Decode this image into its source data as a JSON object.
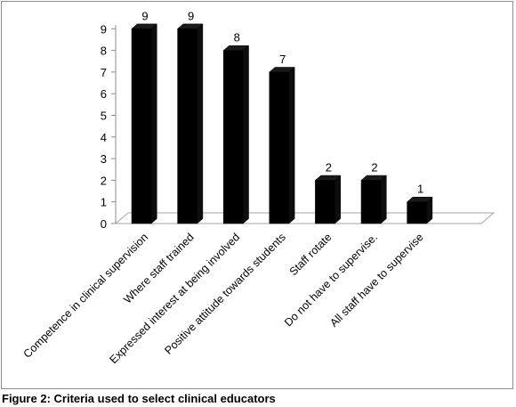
{
  "caption": "Figure 2: Criteria used to select clinical educators",
  "chart_data": {
    "type": "bar",
    "style": "3d",
    "title": "",
    "xlabel": "",
    "ylabel": "",
    "ylim": [
      0,
      9
    ],
    "yticks": [
      "0",
      "1",
      "2",
      "3",
      "4",
      "5",
      "6",
      "7",
      "8",
      "9"
    ],
    "grid": false,
    "bar_color": "#000000",
    "categories": [
      "Competence in clinical supervision",
      "Where staff trained",
      "Expressed interest at being involved",
      "Positive attitude towards students",
      "Staff rotate",
      "Do not have to supervise.",
      "All staff have to supervise"
    ],
    "values": [
      9,
      9,
      8,
      7,
      2,
      2,
      1
    ],
    "data_labels": [
      "9",
      "9",
      "8",
      "7",
      "2",
      "2",
      "1"
    ]
  }
}
